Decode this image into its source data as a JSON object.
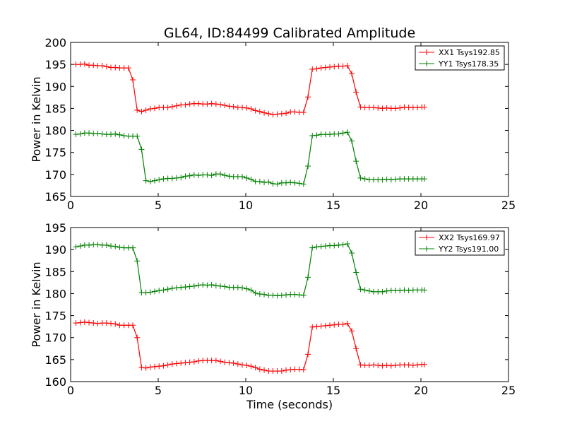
{
  "figure": {
    "title": "GL64, ID:84499 Calibrated Amplitude",
    "xlabel": "Time (seconds)"
  },
  "colors": {
    "red": "#ff0000",
    "green": "#008000",
    "axes": "#000000",
    "background": "#ffffff"
  },
  "chart_data": [
    {
      "type": "line",
      "title": "GL64, ID:84499 Calibrated Amplitude",
      "xlabel": "",
      "ylabel": "Power in Kelvin",
      "xlim": [
        0,
        25
      ],
      "ylim": [
        165,
        200
      ],
      "xticks": [
        0,
        5,
        10,
        15,
        20,
        25
      ],
      "yticks": [
        165,
        170,
        175,
        180,
        185,
        190,
        195,
        200
      ],
      "grid": false,
      "legend": "top-right",
      "marker": "+",
      "x": [
        0.3,
        0.55,
        0.8,
        1.05,
        1.3,
        1.55,
        1.8,
        2.05,
        2.3,
        2.55,
        2.8,
        3.05,
        3.3,
        3.55,
        3.8,
        4.05,
        4.3,
        4.55,
        4.8,
        5.05,
        5.3,
        5.55,
        5.8,
        6.05,
        6.3,
        6.55,
        6.8,
        7.05,
        7.3,
        7.55,
        7.8,
        8.05,
        8.3,
        8.55,
        8.8,
        9.05,
        9.3,
        9.55,
        9.8,
        10.05,
        10.3,
        10.55,
        10.8,
        11.05,
        11.3,
        11.55,
        11.8,
        12.05,
        12.3,
        12.55,
        12.8,
        13.05,
        13.3,
        13.55,
        13.8,
        14.05,
        14.3,
        14.55,
        14.8,
        15.05,
        15.3,
        15.55,
        15.8,
        16.05,
        16.3,
        16.55,
        16.8,
        17.05,
        17.3,
        17.55,
        17.8,
        18.05,
        18.3,
        18.55,
        18.8,
        19.05,
        19.3,
        19.55,
        19.8,
        20.05,
        20.2
      ],
      "series": [
        {
          "name": "XX1 Tsys192.85",
          "color": "#ff0000",
          "values": [
            195.0,
            195.0,
            195.1,
            194.8,
            194.8,
            194.7,
            194.7,
            194.5,
            194.3,
            194.3,
            194.2,
            194.2,
            194.2,
            191.5,
            184.6,
            184.3,
            184.6,
            184.9,
            185.0,
            185.2,
            185.2,
            185.2,
            185.4,
            185.6,
            185.8,
            185.8,
            186.0,
            186.1,
            186.1,
            186.0,
            186.0,
            186.1,
            186.0,
            185.9,
            185.7,
            185.5,
            185.4,
            185.2,
            185.2,
            185.1,
            184.9,
            184.5,
            184.3,
            184.0,
            183.8,
            183.6,
            183.7,
            183.8,
            183.9,
            184.2,
            184.2,
            184.1,
            184.1,
            187.6,
            193.9,
            194.0,
            194.2,
            194.3,
            194.4,
            194.5,
            194.6,
            194.6,
            194.7,
            192.9,
            188.7,
            185.3,
            185.2,
            185.2,
            185.2,
            185.1,
            185.0,
            185.1,
            185.0,
            185.0,
            185.1,
            185.3,
            185.2,
            185.2,
            185.2,
            185.3,
            185.3
          ]
        },
        {
          "name": "YY1 Tsys178.35",
          "color": "#008000",
          "values": [
            179.1,
            179.2,
            179.4,
            179.4,
            179.3,
            179.3,
            179.2,
            179.1,
            179.1,
            179.2,
            179.0,
            178.8,
            178.7,
            178.7,
            178.7,
            175.7,
            168.6,
            168.4,
            168.6,
            168.8,
            169.0,
            169.1,
            169.1,
            169.2,
            169.3,
            169.6,
            169.7,
            169.9,
            169.8,
            169.9,
            169.9,
            169.8,
            170.1,
            170.1,
            169.8,
            169.6,
            169.5,
            169.5,
            169.5,
            169.2,
            168.9,
            168.4,
            168.4,
            168.2,
            168.3,
            167.9,
            167.8,
            168.1,
            168.1,
            168.2,
            168.1,
            168.0,
            167.8,
            171.9,
            178.8,
            178.9,
            179.1,
            179.1,
            179.1,
            179.2,
            179.2,
            179.4,
            179.6,
            177.6,
            173.0,
            169.2,
            169.0,
            168.8,
            168.8,
            168.8,
            168.8,
            168.9,
            168.8,
            168.9,
            169.0,
            169.0,
            169.0,
            169.0,
            169.0,
            169.0,
            169.0
          ]
        }
      ]
    },
    {
      "type": "line",
      "title": "",
      "xlabel": "Time (seconds)",
      "ylabel": "Power in Kelvin",
      "xlim": [
        0,
        25
      ],
      "ylim": [
        160,
        195
      ],
      "xticks": [
        0,
        5,
        10,
        15,
        20,
        25
      ],
      "yticks": [
        160,
        165,
        170,
        175,
        180,
        185,
        190,
        195
      ],
      "grid": false,
      "legend": "top-right",
      "marker": "+",
      "x": [
        0.3,
        0.55,
        0.8,
        1.05,
        1.3,
        1.55,
        1.8,
        2.05,
        2.3,
        2.55,
        2.8,
        3.05,
        3.3,
        3.55,
        3.8,
        4.05,
        4.3,
        4.55,
        4.8,
        5.05,
        5.3,
        5.55,
        5.8,
        6.05,
        6.3,
        6.55,
        6.8,
        7.05,
        7.3,
        7.55,
        7.8,
        8.05,
        8.3,
        8.55,
        8.8,
        9.05,
        9.3,
        9.55,
        9.8,
        10.05,
        10.3,
        10.55,
        10.8,
        11.05,
        11.3,
        11.55,
        11.8,
        12.05,
        12.3,
        12.55,
        12.8,
        13.05,
        13.3,
        13.55,
        13.8,
        14.05,
        14.3,
        14.55,
        14.8,
        15.05,
        15.3,
        15.55,
        15.8,
        16.05,
        16.3,
        16.55,
        16.8,
        17.05,
        17.3,
        17.55,
        17.8,
        18.05,
        18.3,
        18.55,
        18.8,
        19.05,
        19.3,
        19.55,
        19.8,
        20.05,
        20.2
      ],
      "series": [
        {
          "name": "XX2 Tsys169.97",
          "color": "#ff0000",
          "values": [
            173.3,
            173.4,
            173.5,
            173.4,
            173.3,
            173.2,
            173.3,
            173.3,
            173.2,
            173.1,
            172.8,
            172.8,
            172.8,
            172.8,
            170.0,
            163.2,
            163.1,
            163.3,
            163.4,
            163.5,
            163.6,
            163.8,
            164.0,
            164.1,
            164.2,
            164.3,
            164.4,
            164.5,
            164.7,
            164.8,
            164.8,
            164.8,
            164.8,
            164.6,
            164.4,
            164.3,
            164.2,
            164.0,
            163.8,
            163.7,
            163.5,
            163.2,
            162.8,
            162.6,
            162.4,
            162.4,
            162.4,
            162.4,
            162.6,
            162.7,
            162.8,
            162.8,
            162.7,
            166.2,
            172.4,
            172.5,
            172.6,
            172.7,
            172.8,
            172.9,
            173.0,
            173.0,
            173.2,
            171.5,
            167.5,
            163.8,
            163.7,
            163.7,
            163.8,
            163.7,
            163.6,
            163.7,
            163.6,
            163.7,
            163.8,
            163.8,
            163.8,
            163.7,
            163.8,
            163.9,
            163.9
          ]
        },
        {
          "name": "YY2 Tsys191.00",
          "color": "#008000",
          "values": [
            190.6,
            190.8,
            191.0,
            191.0,
            191.1,
            191.1,
            191.0,
            191.0,
            190.8,
            190.7,
            190.5,
            190.4,
            190.4,
            190.4,
            187.4,
            180.2,
            180.2,
            180.3,
            180.5,
            180.7,
            180.8,
            181.0,
            181.2,
            181.3,
            181.4,
            181.5,
            181.6,
            181.7,
            181.9,
            182.0,
            181.9,
            182.0,
            181.8,
            181.7,
            181.6,
            181.4,
            181.4,
            181.4,
            181.3,
            181.1,
            180.8,
            180.1,
            179.9,
            179.8,
            179.6,
            179.6,
            179.5,
            179.6,
            179.7,
            179.8,
            179.8,
            179.7,
            179.6,
            183.7,
            190.4,
            190.6,
            190.7,
            190.8,
            190.9,
            190.9,
            191.0,
            191.1,
            191.3,
            189.2,
            184.8,
            181.0,
            180.8,
            180.6,
            180.4,
            180.4,
            180.4,
            180.6,
            180.7,
            180.7,
            180.7,
            180.8,
            180.7,
            180.8,
            180.8,
            180.8,
            180.8
          ]
        }
      ]
    }
  ]
}
